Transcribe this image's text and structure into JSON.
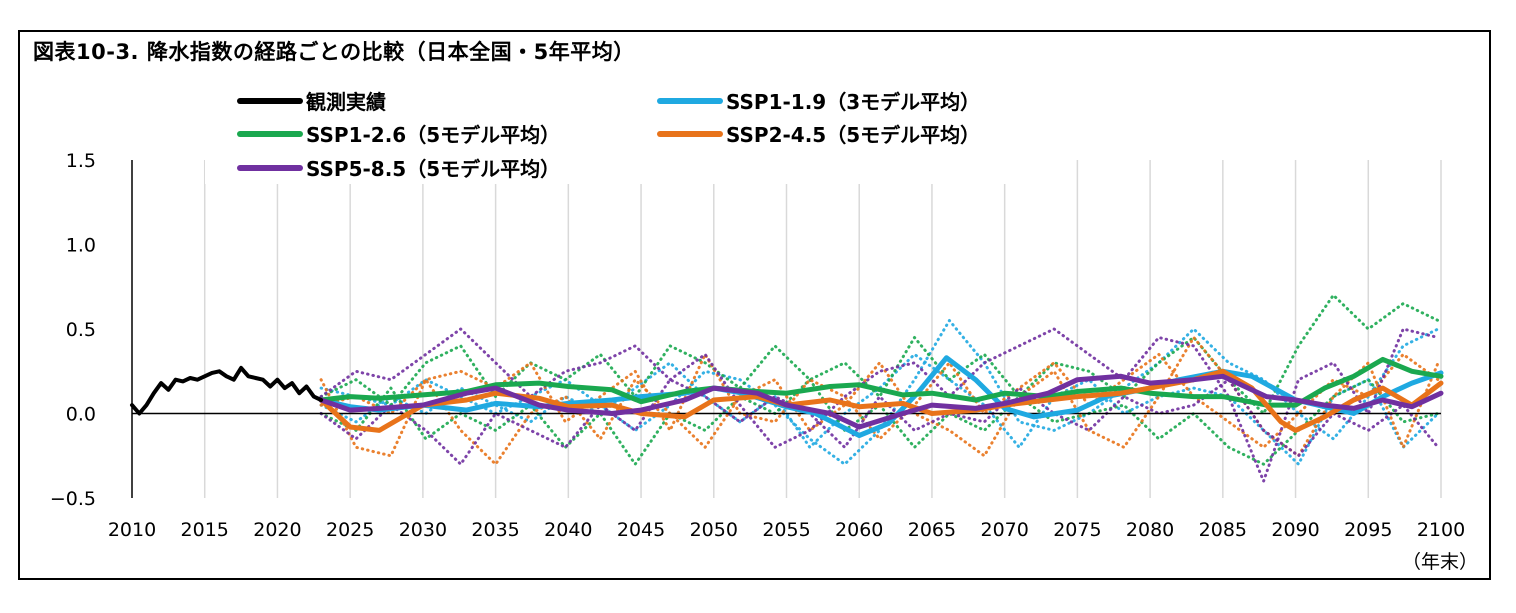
{
  "chart_data": {
    "type": "line",
    "title": "図表10-3. 降水指数の経路ごとの比較（日本全国・5年平均）",
    "xlabel": "（年末）",
    "ylabel": "",
    "xlim": [
      2010,
      2100
    ],
    "ylim": [
      -0.5,
      1.5
    ],
    "x_ticks": [
      2010,
      2015,
      2020,
      2025,
      2030,
      2035,
      2040,
      2045,
      2050,
      2055,
      2060,
      2065,
      2070,
      2075,
      2080,
      2085,
      2090,
      2095,
      2100
    ],
    "y_ticks": [
      -0.5,
      0.0,
      0.5,
      1.0,
      1.5
    ],
    "y_tick_labels": [
      "−0.5",
      "0.0",
      "0.5",
      "1.0",
      "1.5"
    ],
    "grid": "vertical",
    "legend_position": "top",
    "series": [
      {
        "name": "観測実績",
        "color": "#000000",
        "style": "solid",
        "x": [
          2010.0,
          2010.5,
          2011.0,
          2011.5,
          2012.0,
          2012.5,
          2013.0,
          2013.5,
          2014.0,
          2014.5,
          2015.0,
          2015.5,
          2016.0,
          2016.5,
          2017.0,
          2017.5,
          2018.0,
          2018.5,
          2019.0,
          2019.5,
          2020.0,
          2020.5,
          2021.0,
          2021.5,
          2022.0,
          2022.5,
          2023.0
        ],
        "y": [
          0.05,
          0.0,
          0.05,
          0.12,
          0.18,
          0.14,
          0.2,
          0.19,
          0.21,
          0.2,
          0.22,
          0.24,
          0.25,
          0.22,
          0.2,
          0.27,
          0.22,
          0.21,
          0.2,
          0.16,
          0.2,
          0.15,
          0.18,
          0.12,
          0.16,
          0.1,
          0.08
        ]
      },
      {
        "name": "SSP1-1.9（3モデル平均）",
        "color": "#1fa9e1",
        "style": "solid",
        "x": [
          2023,
          2025,
          2027,
          2030,
          2033,
          2035,
          2038,
          2040,
          2043,
          2045,
          2048,
          2050,
          2052,
          2055,
          2057,
          2060,
          2062,
          2064,
          2066,
          2068,
          2070,
          2072,
          2075,
          2077,
          2080,
          2082,
          2085,
          2087,
          2090,
          2092,
          2094,
          2096,
          2098,
          2100
        ],
        "y": [
          0.08,
          0.04,
          0.02,
          0.05,
          0.02,
          0.06,
          0.04,
          0.06,
          0.08,
          0.1,
          0.12,
          0.15,
          0.12,
          0.04,
          0.0,
          -0.13,
          -0.06,
          0.12,
          0.33,
          0.2,
          0.03,
          -0.02,
          0.02,
          0.1,
          0.15,
          0.2,
          0.25,
          0.22,
          0.08,
          0.04,
          0.0,
          0.1,
          0.18,
          0.24
        ]
      },
      {
        "name": "SSP1-2.6（5モデル平均）",
        "color": "#1aa84f",
        "style": "solid",
        "x": [
          2023,
          2025,
          2027,
          2030,
          2033,
          2035,
          2038,
          2040,
          2043,
          2045,
          2048,
          2050,
          2053,
          2055,
          2058,
          2060,
          2063,
          2065,
          2068,
          2070,
          2073,
          2075,
          2078,
          2080,
          2083,
          2085,
          2088,
          2090,
          2092,
          2094,
          2096,
          2098,
          2100
        ],
        "y": [
          0.08,
          0.1,
          0.09,
          0.11,
          0.13,
          0.17,
          0.18,
          0.16,
          0.14,
          0.07,
          0.13,
          0.15,
          0.13,
          0.12,
          0.16,
          0.17,
          0.11,
          0.12,
          0.08,
          0.12,
          0.1,
          0.13,
          0.15,
          0.12,
          0.1,
          0.1,
          0.05,
          0.05,
          0.15,
          0.22,
          0.32,
          0.25,
          0.22
        ]
      },
      {
        "name": "SSP2-4.5（5モデル平均）",
        "color": "#e8731a",
        "style": "solid",
        "x": [
          2023,
          2025,
          2027,
          2030,
          2033,
          2035,
          2038,
          2040,
          2043,
          2045,
          2048,
          2050,
          2053,
          2055,
          2058,
          2060,
          2063,
          2065,
          2068,
          2070,
          2073,
          2075,
          2078,
          2080,
          2083,
          2085,
          2087,
          2089,
          2090,
          2092,
          2094,
          2096,
          2098,
          2100
        ],
        "y": [
          0.08,
          -0.08,
          -0.1,
          0.05,
          0.08,
          0.12,
          0.09,
          0.04,
          0.05,
          0.0,
          -0.02,
          0.08,
          0.1,
          0.05,
          0.08,
          0.04,
          0.06,
          0.0,
          0.02,
          0.05,
          0.08,
          0.1,
          0.12,
          0.15,
          0.2,
          0.25,
          0.15,
          -0.05,
          -0.1,
          -0.02,
          0.08,
          0.15,
          0.05,
          0.18
        ]
      },
      {
        "name": "SSP5-8.5（5モデル平均）",
        "color": "#7030a0",
        "style": "solid",
        "x": [
          2023,
          2025,
          2027,
          2030,
          2033,
          2035,
          2038,
          2040,
          2043,
          2045,
          2048,
          2050,
          2053,
          2055,
          2058,
          2060,
          2063,
          2065,
          2068,
          2070,
          2073,
          2075,
          2078,
          2080,
          2083,
          2085,
          2088,
          2090,
          2092,
          2094,
          2096,
          2098,
          2100
        ],
        "y": [
          0.08,
          0.02,
          0.03,
          0.05,
          0.12,
          0.15,
          0.05,
          0.02,
          0.0,
          0.02,
          0.08,
          0.15,
          0.12,
          0.05,
          0.0,
          -0.08,
          0.0,
          0.05,
          0.03,
          0.06,
          0.12,
          0.2,
          0.22,
          0.18,
          0.2,
          0.22,
          0.1,
          0.08,
          0.05,
          0.03,
          0.08,
          0.04,
          0.12
        ]
      }
    ],
    "model_traces": [
      {
        "color": "#1fa9e1",
        "y": [
          0.15,
          0.1,
          0.05,
          0.2,
          0.1,
          0.0,
          0.1,
          0.2,
          0.05,
          -0.1,
          0.05,
          0.25,
          0.2,
          0.05,
          -0.15,
          -0.3,
          -0.1,
          0.2,
          0.55,
          0.3,
          -0.05,
          -0.1,
          0.0,
          0.15,
          0.3,
          0.5,
          0.3,
          0.2,
          0.0,
          -0.15,
          0.1,
          0.4,
          0.5
        ]
      },
      {
        "color": "#1fa9e1",
        "y": [
          0.05,
          -0.05,
          0.1,
          0.0,
          0.15,
          0.05,
          -0.05,
          0.1,
          0.0,
          0.15,
          0.3,
          0.1,
          -0.05,
          0.1,
          -0.2,
          0.0,
          0.15,
          0.35,
          0.2,
          0.05,
          -0.2,
          0.1,
          0.2,
          0.0,
          0.1,
          0.15,
          0.1,
          -0.1,
          -0.3,
          0.1,
          0.2,
          -0.2,
          0.0
        ]
      },
      {
        "color": "#1aa84f",
        "y": [
          0.1,
          0.2,
          0.05,
          0.3,
          0.4,
          0.1,
          0.3,
          0.2,
          0.35,
          0.1,
          0.4,
          0.3,
          0.15,
          0.4,
          0.2,
          0.3,
          0.1,
          0.45,
          0.2,
          0.35,
          0.1,
          0.3,
          0.25,
          0.1,
          0.3,
          0.45,
          0.2,
          0.0,
          0.4,
          0.7,
          0.5,
          0.65,
          0.55
        ]
      },
      {
        "color": "#1aa84f",
        "y": [
          0.0,
          -0.1,
          0.15,
          -0.15,
          0.0,
          -0.1,
          0.05,
          -0.2,
          0.0,
          -0.3,
          0.0,
          -0.1,
          0.1,
          0.0,
          0.2,
          -0.1,
          0.05,
          -0.2,
          0.0,
          -0.1,
          0.1,
          -0.05,
          0.0,
          0.05,
          -0.15,
          0.0,
          -0.2,
          -0.3,
          -0.1,
          0.1,
          0.2,
          -0.05,
          0.0
        ]
      },
      {
        "color": "#e8731a",
        "y": [
          0.2,
          -0.2,
          -0.25,
          0.2,
          -0.1,
          -0.3,
          0.0,
          0.1,
          -0.15,
          0.2,
          0.0,
          -0.2,
          0.1,
          0.2,
          -0.1,
          0.05,
          0.3,
          0.0,
          -0.1,
          -0.25,
          0.1,
          0.25,
          -0.1,
          -0.2,
          0.1,
          0.45,
          0.2,
          -0.1,
          -0.25,
          0.1,
          0.3,
          -0.2,
          0.3
        ]
      },
      {
        "color": "#e8731a",
        "y": [
          0.05,
          0.1,
          0.0,
          0.2,
          0.25,
          0.15,
          0.3,
          -0.05,
          0.1,
          0.25,
          -0.1,
          0.35,
          0.0,
          -0.05,
          0.2,
          0.1,
          -0.15,
          0.05,
          0.3,
          0.0,
          0.15,
          0.3,
          0.05,
          0.2,
          0.35,
          0.1,
          -0.05,
          -0.2,
          0.0,
          0.2,
          0.1,
          0.35,
          0.2
        ]
      },
      {
        "color": "#7030a0",
        "y": [
          0.1,
          0.25,
          0.2,
          0.35,
          0.5,
          0.3,
          0.1,
          0.25,
          0.3,
          0.4,
          0.2,
          0.35,
          0.05,
          -0.2,
          -0.1,
          0.1,
          0.25,
          0.3,
          0.1,
          0.3,
          0.4,
          0.5,
          0.35,
          0.2,
          0.45,
          0.4,
          0.1,
          -0.4,
          0.2,
          0.3,
          0.0,
          0.5,
          0.45
        ]
      },
      {
        "color": "#7030a0",
        "y": [
          0.0,
          -0.15,
          0.05,
          -0.1,
          -0.3,
          0.0,
          -0.1,
          -0.2,
          0.05,
          -0.1,
          0.2,
          0.1,
          -0.05,
          0.1,
          0.0,
          -0.2,
          0.1,
          -0.1,
          0.0,
          -0.05,
          0.15,
          0.0,
          -0.1,
          0.1,
          0.0,
          0.05,
          0.2,
          -0.1,
          -0.25,
          0.0,
          -0.1,
          0.05,
          -0.2
        ]
      }
    ],
    "model_trace_x_start": 2023,
    "model_trace_x_step": 2.4
  }
}
